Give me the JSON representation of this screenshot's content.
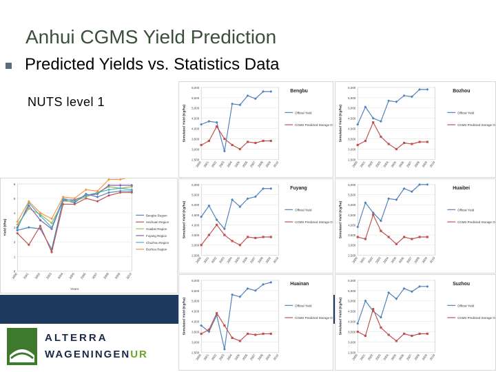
{
  "slide": {
    "title": "Anhui CGMS Yield Prediction",
    "bullet": "Predicted Yields vs. Statistics Data",
    "nuts_label": "NUTS level 1"
  },
  "logo": {
    "line1": "ALTERRA",
    "line2a": "WAGENINGEN",
    "line2b": "UR"
  },
  "colors": {
    "title": "#3a4f3a",
    "band": "#1e3a5f",
    "official": "#4f81bd",
    "simulated": "#c0504d",
    "logo_green": "#6da52a"
  },
  "chart_data": [
    {
      "type": "line",
      "xlabel": "Years",
      "ylabel": "Yield (t/ha)",
      "x": [
        "2000",
        "2001",
        "2002",
        "2003",
        "2004",
        "2005",
        "2006",
        "2007",
        "2008",
        "2009",
        "2010"
      ],
      "ylim": [
        0,
        6
      ],
      "yticks": [
        "0",
        "1",
        "2",
        "3",
        "4",
        "5",
        "6"
      ],
      "series": [
        {
          "name": "Bengbu Region",
          "color": "#4f81bd",
          "values": [
            2.8,
            3.0,
            2.9,
            1.5,
            4.9,
            4.7,
            5.3,
            5.1,
            5.4,
            5.5,
            5.5
          ]
        },
        {
          "name": "Hechuan Region",
          "color": "#c0504d",
          "values": [
            2.6,
            1.8,
            3.1,
            1.3,
            4.6,
            4.6,
            5.0,
            4.8,
            5.2,
            5.4,
            5.4
          ]
        },
        {
          "name": "Huaibei Region",
          "color": "#9bbb59",
          "values": [
            3.2,
            4.3,
            3.9,
            3.3,
            4.8,
            4.8,
            5.1,
            5.4,
            5.8,
            5.7,
            5.8
          ]
        },
        {
          "name": "Fuyang Region",
          "color": "#8064a2",
          "values": [
            3.0,
            4.5,
            3.5,
            2.9,
            4.9,
            4.9,
            5.2,
            5.3,
            5.9,
            5.9,
            5.9
          ]
        },
        {
          "name": "Chuzhou Region",
          "color": "#4bacc6",
          "values": [
            2.9,
            4.7,
            3.8,
            3.0,
            5.0,
            4.8,
            5.2,
            5.4,
            5.6,
            5.7,
            5.6
          ]
        },
        {
          "name": "Bozhou Region",
          "color": "#f79646",
          "values": [
            3.4,
            4.8,
            4.0,
            3.6,
            5.1,
            5.0,
            5.6,
            5.5,
            6.3,
            6.3,
            6.5
          ]
        }
      ]
    },
    {
      "type": "line",
      "title": "Bengbu",
      "ylabel": "Simulated Yield (Kg/ha)",
      "x": [
        "2000",
        "2001",
        "2002",
        "2003",
        "2004",
        "2005",
        "2006",
        "2007",
        "2008",
        "2009",
        "2010"
      ],
      "ylim": [
        2500,
        6000
      ],
      "yticks": [
        "2,500",
        "3,000",
        "3,500",
        "4,000",
        "4,500",
        "5,000",
        "5,500",
        "6,000"
      ],
      "series": [
        {
          "name": "Official Yield",
          "color": "#4f81bd",
          "values": [
            4200,
            4350,
            4300,
            2900,
            5200,
            5150,
            5600,
            5450,
            5800,
            5800,
            null
          ]
        },
        {
          "name": "CGMS Predicted Storage Organs",
          "color": "#c0504d",
          "values": [
            3200,
            3400,
            4100,
            3500,
            3200,
            3000,
            3350,
            3300,
            3400,
            3400,
            null
          ]
        }
      ]
    },
    {
      "type": "line",
      "title": "Bozhou",
      "ylabel": "Simulated Yield (Kg/ha)",
      "x": [
        "2000",
        "2001",
        "2002",
        "2003",
        "2004",
        "2005",
        "2006",
        "2007",
        "2008",
        "2009",
        "2010"
      ],
      "ylim": [
        2500,
        6000
      ],
      "yticks": [
        "2,500",
        "3,000",
        "3,500",
        "4,000",
        "4,500",
        "5,000",
        "5,500",
        "6,000"
      ],
      "series": [
        {
          "name": "Official Yield",
          "color": "#4f81bd",
          "values": [
            4200,
            5050,
            4500,
            4350,
            5350,
            5300,
            5600,
            5550,
            5900,
            5900,
            null
          ]
        },
        {
          "name": "CGMS Predicted Storage Organs",
          "color": "#c0504d",
          "values": [
            3200,
            3400,
            4300,
            3600,
            3250,
            3000,
            3300,
            3250,
            3350,
            3350,
            null
          ]
        }
      ]
    },
    {
      "type": "line",
      "title": "Fuyang",
      "ylabel": "Simulated Yield (Kg/ha)",
      "x": [
        "2000",
        "2001",
        "2002",
        "2003",
        "2004",
        "2005",
        "2006",
        "2007",
        "2008",
        "2009",
        "2010"
      ],
      "ylim": [
        2500,
        6000
      ],
      "yticks": [
        "2,500",
        "3,000",
        "3,500",
        "4,000",
        "4,500",
        "5,000",
        "5,500",
        "6,000"
      ],
      "series": [
        {
          "name": "Official Yield",
          "color": "#4f81bd",
          "values": [
            4400,
            4950,
            4250,
            3800,
            5250,
            4900,
            5300,
            5400,
            5800,
            5800,
            null
          ]
        },
        {
          "name": "CGMS Predicted Storage Organs",
          "color": "#c0504d",
          "values": [
            3000,
            3500,
            4000,
            3500,
            3200,
            3000,
            3400,
            3350,
            3400,
            3400,
            null
          ]
        }
      ]
    },
    {
      "type": "line",
      "title": "Huaibei",
      "ylabel": "Simulated Yield (Kg/ha)",
      "x": [
        "2000",
        "2001",
        "2002",
        "2003",
        "2004",
        "2005",
        "2006",
        "2007",
        "2008",
        "2009",
        "2010"
      ],
      "ylim": [
        2500,
        6000
      ],
      "yticks": [
        "2,500",
        "3,000",
        "3,500",
        "4,000",
        "4,500",
        "5,000",
        "5,500",
        "6,000"
      ],
      "series": [
        {
          "name": "Official Yield",
          "color": "#4f81bd",
          "values": [
            3900,
            5100,
            4600,
            4200,
            5300,
            5250,
            5800,
            5650,
            6000,
            6000,
            null
          ]
        },
        {
          "name": "CGMS Predicted Storage Organs",
          "color": "#c0504d",
          "values": [
            3400,
            3300,
            4500,
            3700,
            3400,
            3050,
            3400,
            3300,
            3400,
            3400,
            null
          ]
        }
      ]
    },
    {
      "type": "line",
      "title": "Huainan",
      "ylabel": "Simulated Yield (Kg/ha)",
      "x": [
        "2000",
        "2001",
        "2002",
        "2003",
        "2004",
        "2005",
        "2006",
        "2007",
        "2008",
        "2009",
        "2010"
      ],
      "ylim": [
        2500,
        6000
      ],
      "yticks": [
        "2,500",
        "3,000",
        "3,500",
        "4,000",
        "4,500",
        "5,000",
        "5,500",
        "6,000"
      ],
      "series": [
        {
          "name": "Official Yield",
          "color": "#4f81bd",
          "values": [
            3800,
            3500,
            4300,
            2650,
            5300,
            5200,
            5600,
            5500,
            5800,
            5900,
            null
          ]
        },
        {
          "name": "CGMS Predicted Storage Organs",
          "color": "#c0504d",
          "values": [
            3400,
            3600,
            4400,
            3800,
            3200,
            3050,
            3400,
            3350,
            3400,
            3400,
            null
          ]
        }
      ]
    },
    {
      "type": "line",
      "title": "Suzhou",
      "ylabel": "Simulated Yield (Kg/ha)",
      "x": [
        "2000",
        "2001",
        "2002",
        "2003",
        "2004",
        "2005",
        "2006",
        "2007",
        "2008",
        "2009",
        "2010"
      ],
      "ylim": [
        2500,
        6000
      ],
      "yticks": [
        "2,500",
        "3,000",
        "3,500",
        "4,000",
        "4,500",
        "5,000",
        "5,500",
        "6,000"
      ],
      "series": [
        {
          "name": "Official Yield",
          "color": "#4f81bd",
          "values": [
            3900,
            5000,
            4500,
            4200,
            5400,
            5100,
            5600,
            5450,
            5700,
            5700,
            null
          ]
        },
        {
          "name": "CGMS Predicted Storage Organs",
          "color": "#c0504d",
          "values": [
            3500,
            3300,
            4600,
            3700,
            3350,
            3050,
            3400,
            3300,
            3400,
            3400,
            null
          ]
        }
      ]
    }
  ]
}
